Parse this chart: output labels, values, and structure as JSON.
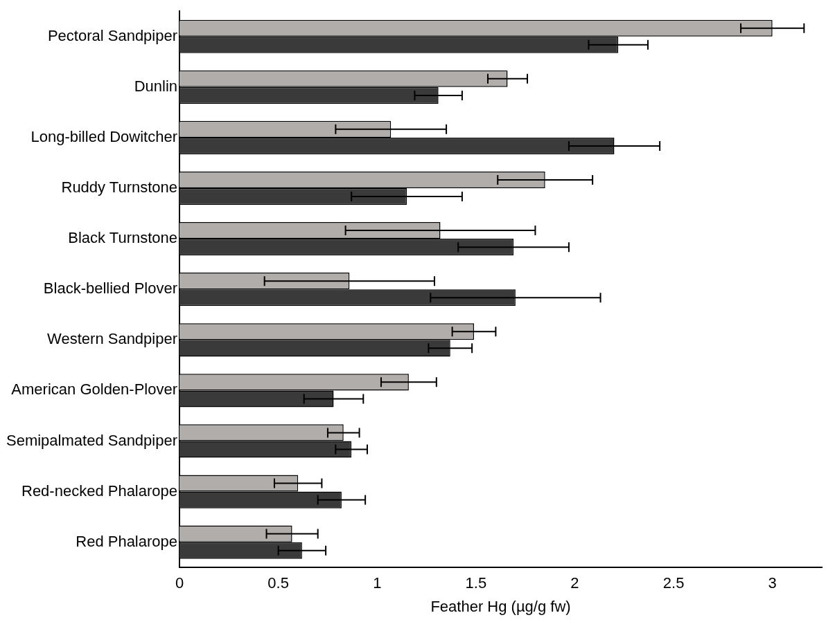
{
  "chart_data": {
    "type": "bar",
    "orientation": "horizontal",
    "xlabel": "Feather Hg (µg/g fw)",
    "categories": [
      "Pectoral Sandpiper",
      "Dunlin",
      "Long-billed Dowitcher",
      "Ruddy Turnstone",
      "Black Turnstone",
      "Black-bellied Plover",
      "Western Sandpiper",
      "American Golden-Plover",
      "Semipalmated Sandpiper",
      "Red-necked Phalarope",
      "Red Phalarope"
    ],
    "series": [
      {
        "color": "#b0adab",
        "values": [
          3.0,
          1.66,
          1.07,
          1.85,
          1.32,
          0.86,
          1.49,
          1.16,
          0.83,
          0.6,
          0.57
        ],
        "errors": [
          0.16,
          0.1,
          0.28,
          0.24,
          0.48,
          0.43,
          0.11,
          0.14,
          0.08,
          0.12,
          0.13
        ]
      },
      {
        "color": "#3a3a3a",
        "values": [
          2.22,
          1.31,
          2.2,
          1.15,
          1.69,
          1.7,
          1.37,
          0.78,
          0.87,
          0.82,
          0.62
        ],
        "errors": [
          0.15,
          0.12,
          0.23,
          0.28,
          0.28,
          0.43,
          0.11,
          0.15,
          0.08,
          0.12,
          0.12
        ]
      }
    ],
    "xlim": [
      0,
      3.25
    ],
    "xticks": [
      0,
      0.5,
      1,
      1.5,
      2,
      2.5,
      3
    ],
    "grid": false,
    "legend": false
  }
}
